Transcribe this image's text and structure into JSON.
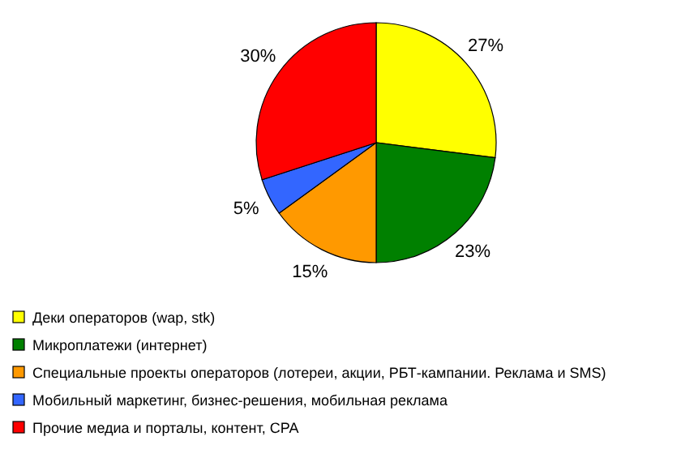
{
  "chart_data": {
    "type": "pie",
    "categories": [
      "Деки операторов (wap, stk)",
      "Микроплатежи (интернет)",
      "Специальные проекты операторов (лотереи, акции, РБТ-кампании. Реклама и SMS)",
      "Мобильный маркетинг, бизнес-решения, мобильная реклама",
      "Прочие медиа и порталы, контент, CPA"
    ],
    "values": [
      27,
      23,
      15,
      5,
      30
    ],
    "colors": [
      "#ffff00",
      "#008000",
      "#ff9900",
      "#3366ff",
      "#ff0000"
    ],
    "value_labels": [
      "27%",
      "23%",
      "15%",
      "5%",
      "30%"
    ],
    "legend": "bottom"
  }
}
